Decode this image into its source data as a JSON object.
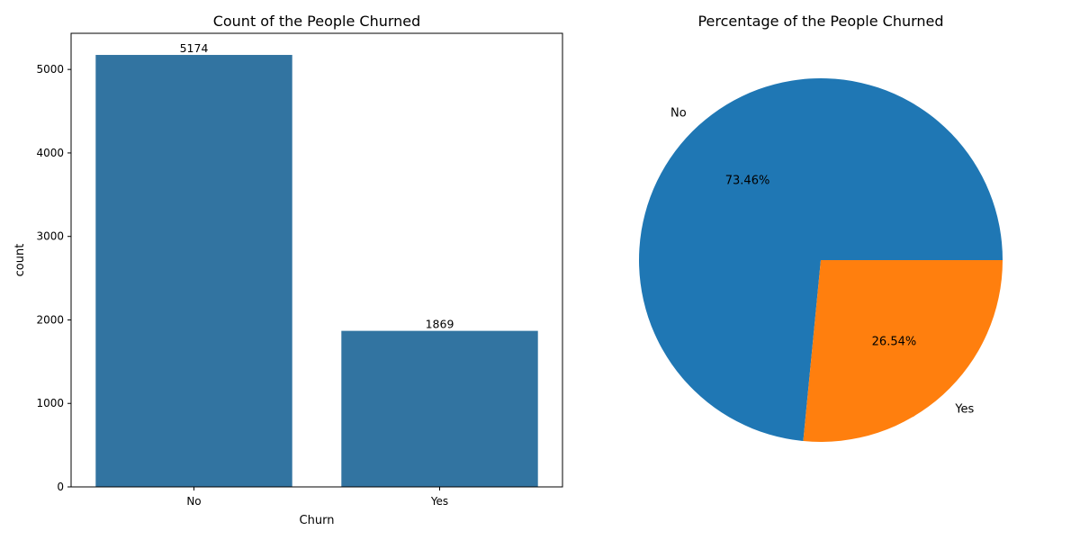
{
  "chart_data": [
    {
      "type": "bar",
      "title": "Count of the People Churned",
      "xlabel": "Churn",
      "ylabel": "count",
      "categories": [
        "No",
        "Yes"
      ],
      "values": [
        5174,
        1869
      ],
      "data_labels": [
        "5174",
        "1869"
      ],
      "ylim": [
        0,
        5433
      ],
      "yticks": [
        0,
        1000,
        2000,
        3000,
        4000,
        5000
      ],
      "ytick_labels": [
        "0",
        "1000",
        "2000",
        "3000",
        "4000",
        "5000"
      ],
      "grid": false,
      "color": "#3274a1"
    },
    {
      "type": "pie",
      "title": "Percentage of the People Churned",
      "labels": [
        "No",
        "Yes"
      ],
      "values": [
        73.46,
        26.54
      ],
      "pct_labels": [
        "73.46%",
        "26.54%"
      ],
      "colors": [
        "#1f77b4",
        "#ff7f0e"
      ]
    }
  ]
}
